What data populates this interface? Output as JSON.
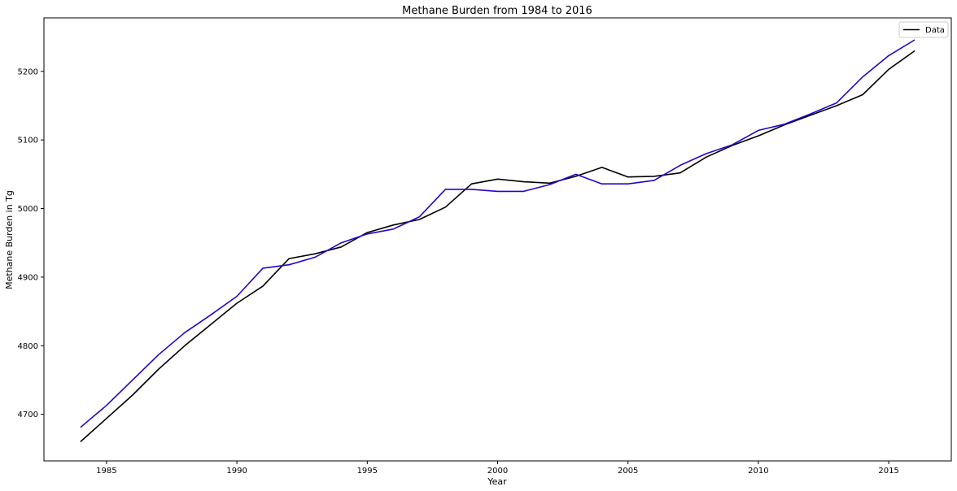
{
  "chart_data": {
    "type": "line",
    "title": "Methane Burden from 1984 to 2016",
    "xlabel": "Year",
    "ylabel": "Methane Burden in Tg",
    "xlim": [
      1982.6,
      2017.4
    ],
    "ylim": [
      4632,
      5278
    ],
    "xticks": [
      1985,
      1990,
      1995,
      2000,
      2005,
      2010,
      2015
    ],
    "yticks": [
      4700,
      4800,
      4900,
      5000,
      5100,
      5200
    ],
    "grid": false,
    "legend": {
      "placement": "top-right",
      "entries": [
        "Data"
      ]
    },
    "x": [
      1984,
      1985,
      1986,
      1987,
      1988,
      1989,
      1990,
      1991,
      1992,
      1993,
      1994,
      1995,
      1996,
      1997,
      1998,
      1999,
      2000,
      2001,
      2002,
      2003,
      2004,
      2005,
      2006,
      2007,
      2008,
      2009,
      2010,
      2011,
      2012,
      2013,
      2014,
      2015,
      2016
    ],
    "series": [
      {
        "name": "Data",
        "color": "#000000",
        "values": [
          4660,
          4694,
          4728,
          4766,
          4800,
          4831,
          4862,
          4887,
          4927,
          4934,
          4944,
          4965,
          4976,
          4984,
          5002,
          5036,
          5043,
          5039,
          5037,
          5047,
          5060,
          5046,
          5047,
          5052,
          5075,
          5092,
          5106,
          5122,
          5136,
          5150,
          5166,
          5203,
          5230
        ]
      },
      {
        "color": "#2a00cc",
        "values": [
          4681,
          4713,
          4750,
          4787,
          4819,
          4845,
          4872,
          4913,
          4918,
          4929,
          4950,
          4963,
          4970,
          4988,
          5028,
          5028,
          5025,
          5025,
          5035,
          5050,
          5036,
          5036,
          5041,
          5063,
          5080,
          5093,
          5114,
          5123,
          5138,
          5154,
          5192,
          5223,
          5246
        ]
      }
    ]
  }
}
